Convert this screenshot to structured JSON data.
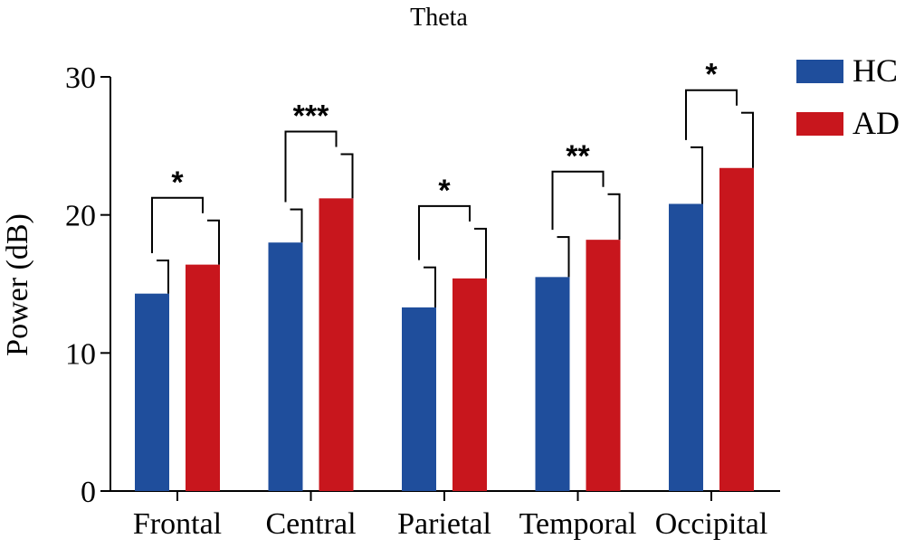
{
  "chart_data": {
    "type": "bar",
    "title": "Theta",
    "ylabel": "Power (dB)",
    "xlabel": "",
    "ylim": [
      0,
      30
    ],
    "yticks": [
      0,
      10,
      20,
      30
    ],
    "categories": [
      "Frontal",
      "Central",
      "Parietal",
      "Temporal",
      "Occipital"
    ],
    "series": [
      {
        "name": "HC",
        "color": "#1f4e9c",
        "values": [
          14.3,
          18.0,
          13.3,
          15.5,
          20.8
        ],
        "errors": [
          2.4,
          2.4,
          2.9,
          2.9,
          4.1
        ]
      },
      {
        "name": "AD",
        "color": "#c8161d",
        "values": [
          16.4,
          21.2,
          15.4,
          18.2,
          23.4
        ],
        "errors": [
          3.2,
          3.2,
          3.6,
          3.3,
          4.0
        ]
      }
    ],
    "significance": [
      "*",
      "***",
      "*",
      "**",
      "*"
    ],
    "legend_position": "top-right",
    "grid": false
  }
}
